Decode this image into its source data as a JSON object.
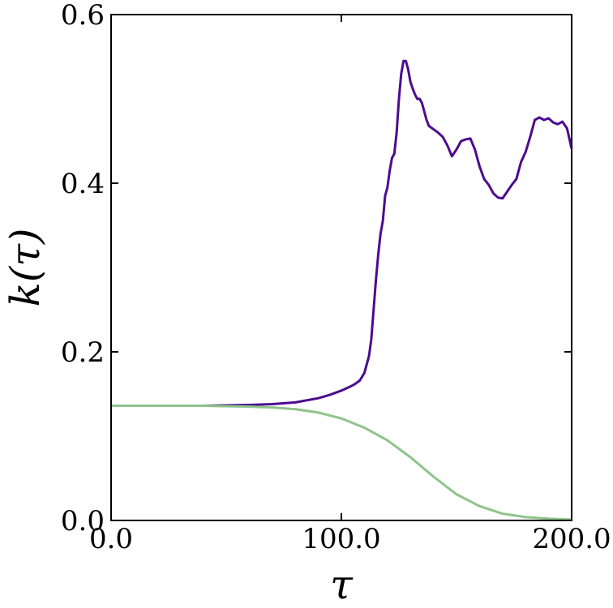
{
  "chart_data": {
    "type": "line",
    "xlabel": "τ",
    "ylabel": "k(τ)",
    "xlim": [
      0,
      200
    ],
    "ylim": [
      0,
      0.6
    ],
    "xticks": [
      0,
      100,
      200
    ],
    "xtick_labels": [
      "0.0",
      "100.0",
      "200.0"
    ],
    "yticks": [
      0,
      0.2,
      0.4,
      0.6
    ],
    "ytick_labels": [
      "0.0",
      "0.2",
      "0.4",
      "0.6"
    ],
    "grid": false,
    "legend": "none",
    "series": [
      {
        "color": "#4b0c8f",
        "x": [
          0,
          20,
          40,
          60,
          70,
          80,
          90,
          95,
          100,
          104,
          106,
          108,
          110,
          112,
          113,
          114,
          115,
          116,
          117,
          118,
          119,
          120,
          121,
          122,
          123,
          124,
          125,
          126,
          127,
          128,
          129,
          130,
          131,
          132,
          133,
          134,
          135,
          136,
          137,
          138,
          139,
          140,
          142,
          144,
          146,
          148,
          150,
          152,
          154,
          156,
          158,
          160,
          162,
          164,
          166,
          168,
          170,
          172,
          174,
          176,
          178,
          180,
          182,
          184,
          186,
          188,
          190,
          192,
          194,
          196,
          198,
          200
        ],
        "y": [
          0.136,
          0.136,
          0.136,
          0.137,
          0.138,
          0.14,
          0.145,
          0.149,
          0.154,
          0.159,
          0.162,
          0.166,
          0.175,
          0.195,
          0.215,
          0.25,
          0.285,
          0.315,
          0.34,
          0.355,
          0.385,
          0.395,
          0.415,
          0.43,
          0.435,
          0.46,
          0.5,
          0.53,
          0.545,
          0.545,
          0.535,
          0.52,
          0.512,
          0.505,
          0.5,
          0.5,
          0.495,
          0.485,
          0.475,
          0.468,
          0.466,
          0.464,
          0.46,
          0.455,
          0.445,
          0.432,
          0.44,
          0.45,
          0.452,
          0.453,
          0.44,
          0.42,
          0.405,
          0.398,
          0.388,
          0.383,
          0.382,
          0.39,
          0.398,
          0.405,
          0.425,
          0.437,
          0.455,
          0.475,
          0.478,
          0.475,
          0.477,
          0.472,
          0.47,
          0.473,
          0.465,
          0.441
        ]
      },
      {
        "color": "#8fc48a",
        "x": [
          0,
          20,
          40,
          60,
          70,
          80,
          90,
          100,
          110,
          120,
          130,
          140,
          150,
          160,
          170,
          180,
          190,
          200
        ],
        "y": [
          0.136,
          0.136,
          0.136,
          0.135,
          0.134,
          0.132,
          0.128,
          0.121,
          0.11,
          0.095,
          0.075,
          0.052,
          0.031,
          0.017,
          0.008,
          0.004,
          0.002,
          0.001
        ]
      }
    ]
  }
}
